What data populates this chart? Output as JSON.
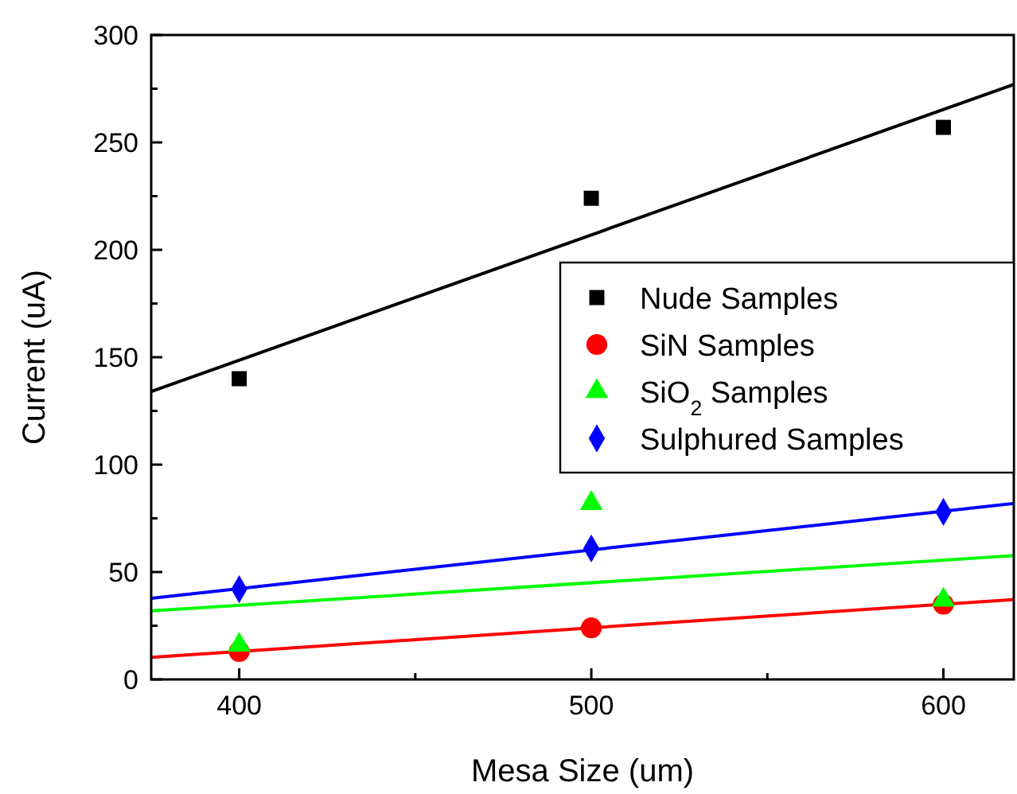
{
  "chart_data": {
    "type": "scatter",
    "xlabel": "Mesa Size (um)",
    "ylabel": "Current (uA)",
    "xlim": [
      375,
      620
    ],
    "ylim": [
      0,
      300
    ],
    "xticks": [
      400,
      {
        "value": 450,
        "label": null
      },
      500,
      {
        "value": 550,
        "label": null
      },
      600
    ],
    "yticks": [
      0,
      {
        "value": 25,
        "label": null
      },
      50,
      {
        "value": 75,
        "label": null
      },
      100,
      {
        "value": 125,
        "label": null
      },
      150,
      {
        "value": 175,
        "label": null
      },
      200,
      {
        "value": 225,
        "label": null
      },
      250,
      {
        "value": 275,
        "label": null
      },
      300
    ],
    "grid": false,
    "legend": "right",
    "series": [
      {
        "name": "Nude Samples",
        "color": "#000000",
        "marker": "square",
        "x": [
          400,
          500,
          600
        ],
        "values": [
          140,
          224,
          257
        ]
      },
      {
        "name": "SiN Samples",
        "color": "#ff0000",
        "marker": "circle",
        "x": [
          400,
          500,
          600
        ],
        "values": [
          13,
          24,
          35
        ]
      },
      {
        "name": "SiO$_{2}$ Samples",
        "color": "#00ff00",
        "marker": "triangle",
        "x": [
          400,
          500,
          600
        ],
        "values": [
          16,
          82,
          37
        ]
      },
      {
        "name": "Sulphured Samples",
        "color": "#0000ff",
        "marker": "diamond",
        "x": [
          400,
          500,
          600
        ],
        "values": [
          42,
          61,
          78
        ]
      },
      {
        "type": "line",
        "color": "#000000",
        "marker": "none",
        "x": [
          375,
          620
        ],
        "values": [
          134,
          277
        ]
      },
      {
        "type": "line",
        "color": "#ff0000",
        "marker": "none",
        "x": [
          375,
          620
        ],
        "values": [
          10.3,
          37.2
        ]
      },
      {
        "type": "line",
        "color": "#00ff00",
        "marker": "none",
        "x": [
          375,
          620
        ],
        "values": [
          31.9,
          57.6
        ]
      },
      {
        "type": "line",
        "color": "#0000ff",
        "marker": "none",
        "x": [
          375,
          620
        ],
        "values": [
          37.8,
          81.9
        ]
      }
    ]
  }
}
